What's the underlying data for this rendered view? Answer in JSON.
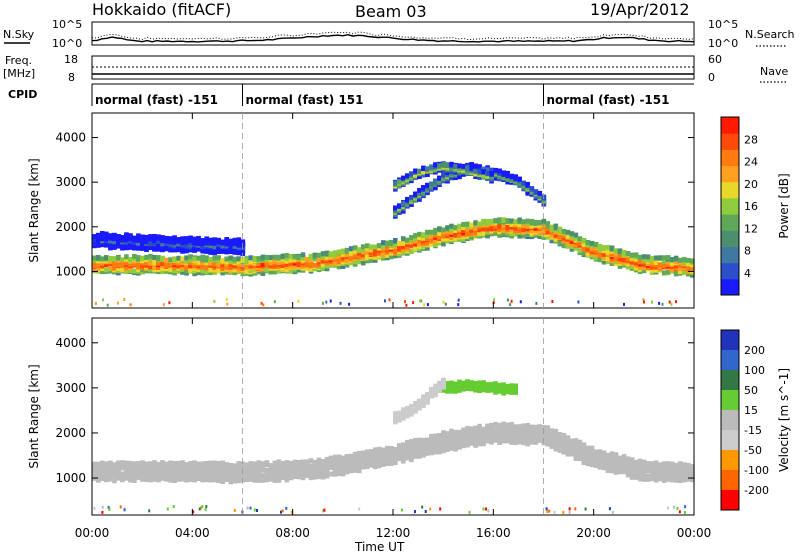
{
  "header": {
    "site": "Hokkaido (fitACF)",
    "beam": "Beam 03",
    "date": "19/Apr/2012"
  },
  "strip_labels": {
    "nsky": "N.Sky",
    "nsearch": "N.Search",
    "freq_line1": "Freq.",
    "freq_line2": "[MHz]",
    "nave": "Nave",
    "cpid": "CPID"
  },
  "noise_axis": {
    "left_top": "10^5",
    "left_bottom": "10^0",
    "right_top": "10^5",
    "right_bottom": "10^0"
  },
  "freq_axis": {
    "left_top": "18",
    "left_bottom": "8",
    "right_top": "60",
    "right_bottom": "0"
  },
  "cpid_segments": [
    {
      "label": "normal (fast) -151",
      "start_hour": 0,
      "end_hour": 6
    },
    {
      "label": "normal (fast) 151",
      "start_hour": 6,
      "end_hour": 18
    },
    {
      "label": "normal (fast) -151",
      "start_hour": 18,
      "end_hour": 24
    }
  ],
  "chart_data": [
    {
      "type": "heatmap",
      "name": "power",
      "ylabel": "Slant Range [km]",
      "xlabel": "Time UT",
      "ylim": [
        180,
        4550
      ],
      "yticks": [
        "1000",
        "2000",
        "3000",
        "4000"
      ],
      "colorbar_label": "Power [dB]",
      "colorbar_ticks": [
        "4",
        "8",
        "12",
        "16",
        "20",
        "24",
        "28"
      ],
      "colorbar_colors": [
        "#1a1aff",
        "#2a4fc8",
        "#3f78a0",
        "#4b8f6e",
        "#5fa85a",
        "#8fcc3e",
        "#e8d82a",
        "#ffa020",
        "#ff7a10",
        "#ff4a0a",
        "#ff1a00"
      ],
      "bands": [
        {
          "center": [
            [
              0,
              1150
            ],
            [
              3,
              1150
            ],
            [
              6,
              1120
            ],
            [
              9,
              1200
            ],
            [
              12,
              1500
            ],
            [
              14,
              1800
            ],
            [
              16,
              2000
            ],
            [
              18,
              1950
            ],
            [
              20,
              1450
            ],
            [
              22,
              1150
            ],
            [
              24,
              1100
            ]
          ],
          "width": 320,
          "level": 26
        },
        {
          "center": [
            [
              12,
              2300
            ],
            [
              13,
              2700
            ],
            [
              14,
              3100
            ],
            [
              15,
              3300
            ],
            [
              16,
              3200
            ],
            [
              17,
              3000
            ],
            [
              18,
              2600
            ]
          ],
          "width": 160,
          "level": 14
        },
        {
          "center": [
            [
              12,
              2900
            ],
            [
              13,
              3200
            ],
            [
              14,
              3350
            ],
            [
              15,
              3250
            ],
            [
              16,
              3100
            ]
          ],
          "width": 120,
          "level": 18
        },
        {
          "center": [
            [
              0,
              1700
            ],
            [
              2,
              1650
            ],
            [
              4,
              1600
            ],
            [
              6,
              1550
            ]
          ],
          "width": 260,
          "level": 6
        }
      ]
    },
    {
      "type": "heatmap",
      "name": "velocity",
      "ylabel": "Slant Range [km]",
      "xlabel": "Time UT",
      "ylim": [
        180,
        4550
      ],
      "yticks": [
        "1000",
        "2000",
        "3000",
        "4000"
      ],
      "colorbar_label": "Velocity [m s^-1]",
      "colorbar_ticks": [
        "200",
        "100",
        "50",
        "15",
        "-15",
        "-50",
        "-100",
        "-200"
      ],
      "colorbar_colors": [
        "#2233bb",
        "#3366cc",
        "#337744",
        "#66cc33",
        "#bbbbbb",
        "#cccccc",
        "#ff9900",
        "#ff6600",
        "#ff0000"
      ],
      "bands": [
        {
          "center": [
            [
              0,
              1150
            ],
            [
              3,
              1150
            ],
            [
              6,
              1120
            ],
            [
              9,
              1200
            ],
            [
              12,
              1500
            ],
            [
              14,
              1800
            ],
            [
              16,
              2000
            ],
            [
              18,
              1950
            ],
            [
              20,
              1450
            ],
            [
              22,
              1150
            ],
            [
              24,
              1100
            ]
          ],
          "width": 360,
          "level": 0
        },
        {
          "center": [
            [
              14,
              3000
            ],
            [
              15,
              3050
            ],
            [
              16,
              3000
            ],
            [
              17,
              2950
            ]
          ],
          "width": 140,
          "level": 40
        },
        {
          "center": [
            [
              12,
              2300
            ],
            [
              13,
              2600
            ],
            [
              14,
              3100
            ]
          ],
          "width": 160,
          "level": -40
        }
      ]
    }
  ],
  "x_axis": {
    "label": "Time UT",
    "ticks": [
      "00:00",
      "04:00",
      "08:00",
      "12:00",
      "16:00",
      "20:00",
      "00:00"
    ]
  }
}
